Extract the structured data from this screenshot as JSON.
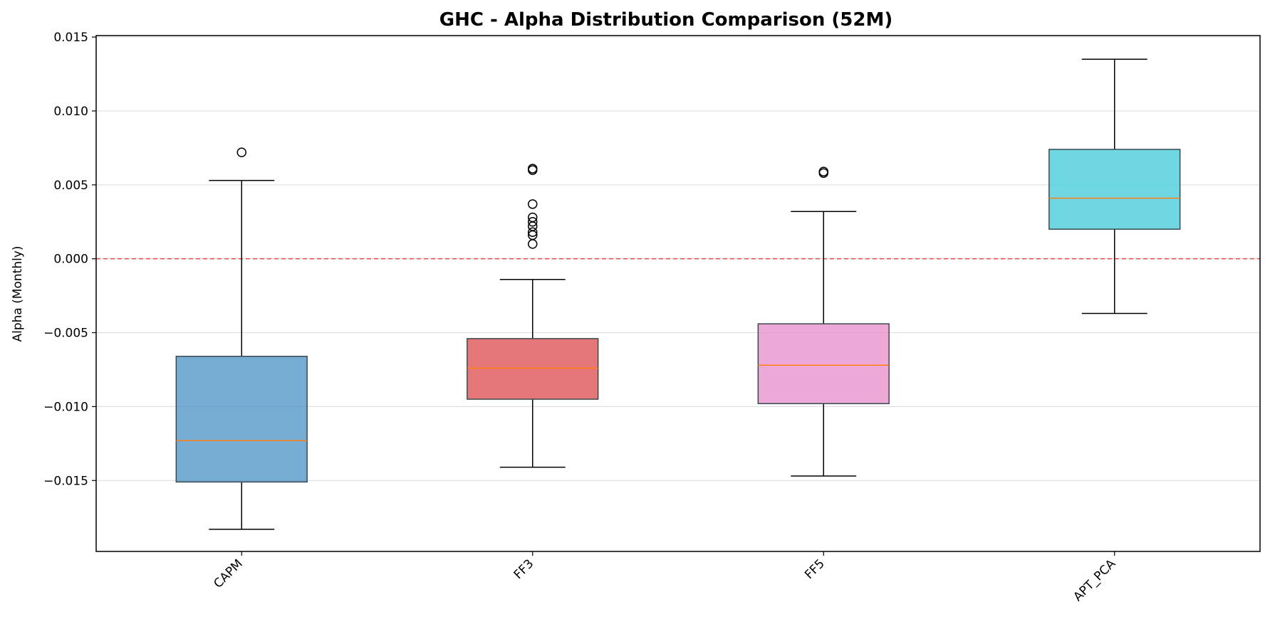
{
  "chart_data": {
    "type": "boxplot",
    "title": "GHC - Alpha Distribution Comparison (52M)",
    "xlabel": "",
    "ylabel": "Alpha (Monthly)",
    "ylim": [
      -0.0198,
      0.0151
    ],
    "yticks": [
      0.015,
      0.01,
      0.005,
      0.0,
      -0.005,
      -0.01,
      -0.015
    ],
    "ytick_labels": [
      "0.015",
      "0.010",
      "0.005",
      "0.000",
      "−0.005",
      "−0.010",
      "−0.015"
    ],
    "grid": "y",
    "reference_line": {
      "y": 0.0,
      "style": "dashed",
      "color": "#e8474a"
    },
    "categories": [
      "CAPM",
      "FF3",
      "FF5",
      "APT_PCA"
    ],
    "boxes": [
      {
        "label": "CAPM",
        "whisker_low": -0.0183,
        "q1": -0.0151,
        "median": -0.0123,
        "q3": -0.0066,
        "whisker_high": 0.0053,
        "outliers": [
          0.0072
        ],
        "color": "#4a90c4"
      },
      {
        "label": "FF3",
        "whisker_low": -0.0141,
        "q1": -0.0095,
        "median": -0.0074,
        "q3": -0.0054,
        "whisker_high": -0.0014,
        "outliers": [
          0.001,
          0.0016,
          0.0018,
          0.0022,
          0.0025,
          0.0028,
          0.0037,
          0.006,
          0.0061
        ],
        "color": "#dd4a4b"
      },
      {
        "label": "FF5",
        "whisker_low": -0.0147,
        "q1": -0.0098,
        "median": -0.0072,
        "q3": -0.0044,
        "whisker_high": 0.0032,
        "outliers": [
          0.0058,
          0.0059
        ],
        "color": "#e68bc8"
      },
      {
        "label": "APT_PCA",
        "whisker_low": -0.0037,
        "q1": 0.002,
        "median": 0.0041,
        "q3": 0.0074,
        "whisker_high": 0.0135,
        "outliers": [],
        "color": "#3ecad8"
      }
    ],
    "median_color": "#ff7f0e"
  }
}
